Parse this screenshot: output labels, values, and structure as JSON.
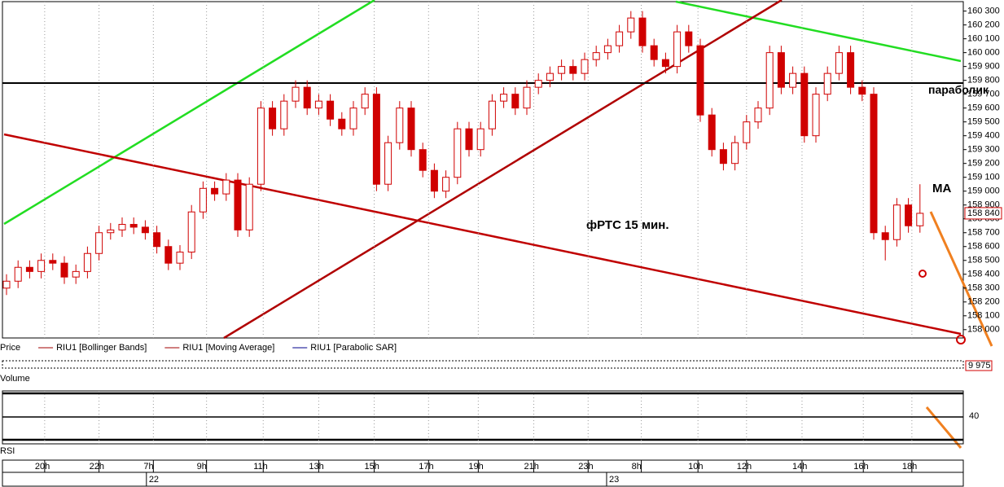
{
  "chart_data": {
    "type": "candlestick",
    "title": "фРТС   15 мин.",
    "annotation": "MA",
    "color": "#d00000",
    "open": [
      158300,
      158350,
      158450,
      158420,
      158500,
      158480,
      158380,
      158420,
      158550,
      158700,
      158720,
      158760,
      158740,
      158700,
      158600,
      158480,
      158560,
      158850,
      159020,
      158980,
      159080,
      158720,
      159050,
      159600,
      159450,
      159650,
      159750,
      159600,
      159650,
      159520,
      159450,
      159600,
      159700,
      159050,
      159350,
      159600,
      159300,
      159150,
      159000,
      159100,
      159450,
      159300,
      159450,
      159650,
      159700,
      159600,
      159750,
      159800,
      159850,
      159900,
      159850,
      159950,
      160000,
      160050,
      160150,
      160250,
      160050,
      159950,
      159900,
      160150,
      160050,
      159550,
      159300,
      159200,
      159350,
      159500,
      159600,
      160000,
      159750,
      159850,
      159400,
      159700,
      159850,
      160000,
      159750,
      159700,
      158700,
      158650,
      158900,
      158750
    ],
    "high": [
      158400,
      158500,
      158500,
      158550,
      158550,
      158530,
      158470,
      158600,
      158750,
      158770,
      158810,
      158810,
      158790,
      158750,
      158650,
      158610,
      158900,
      159070,
      159070,
      159130,
      159130,
      159100,
      159650,
      159650,
      159700,
      159800,
      159800,
      159700,
      159700,
      159570,
      159650,
      159750,
      159750,
      159400,
      159650,
      159650,
      159350,
      159200,
      159150,
      159500,
      159500,
      159500,
      159700,
      159750,
      159750,
      159800,
      159850,
      159900,
      159950,
      159950,
      160000,
      160050,
      160100,
      160200,
      160300,
      160300,
      160100,
      160000,
      160200,
      160200,
      160100,
      159600,
      159350,
      159400,
      159550,
      159650,
      160050,
      160050,
      159900,
      159900,
      159750,
      159900,
      160050,
      160050,
      159800,
      159750,
      158750,
      158950,
      158950,
      159050
    ],
    "low": [
      158250,
      158300,
      158370,
      158370,
      158430,
      158330,
      158330,
      158370,
      158500,
      158650,
      158670,
      158690,
      158650,
      158550,
      158430,
      158430,
      158510,
      158800,
      158930,
      158930,
      158670,
      158670,
      159000,
      159400,
      159400,
      159600,
      159550,
      159550,
      159470,
      159400,
      159400,
      159550,
      159000,
      159000,
      159300,
      159250,
      159100,
      158950,
      158950,
      159050,
      159250,
      159250,
      159400,
      159600,
      159550,
      159550,
      159700,
      159750,
      159800,
      159800,
      159800,
      159900,
      159950,
      160000,
      160100,
      160000,
      159900,
      159850,
      159850,
      160000,
      159500,
      159250,
      159150,
      159150,
      159300,
      159450,
      159550,
      159700,
      159700,
      159350,
      159350,
      159650,
      159800,
      159700,
      159650,
      158650,
      158500,
      158600,
      158700,
      158700
    ],
    "close": [
      158350,
      158450,
      158420,
      158500,
      158480,
      158380,
      158420,
      158550,
      158700,
      158720,
      158760,
      158740,
      158700,
      158600,
      158480,
      158560,
      158850,
      159020,
      158980,
      159080,
      158720,
      159050,
      159600,
      159450,
      159650,
      159750,
      159600,
      159650,
      159520,
      159450,
      159600,
      159700,
      159050,
      159350,
      159600,
      159300,
      159150,
      159000,
      159100,
      159450,
      159300,
      159450,
      159650,
      159700,
      159600,
      159750,
      159800,
      159850,
      159900,
      159850,
      159950,
      160000,
      160050,
      160150,
      160250,
      160050,
      159950,
      159900,
      160150,
      160050,
      159550,
      159300,
      159200,
      159350,
      159500,
      159600,
      160000,
      159750,
      159850,
      159400,
      159700,
      159850,
      160000,
      159750,
      159700,
      158700,
      158650,
      158900,
      158750,
      158840
    ],
    "last_label": "158 840",
    "ylim": [
      157940,
      160380
    ],
    "yticks": [
      {
        "value": 158000,
        "label": "158 000"
      },
      {
        "value": 158100,
        "label": "158 100"
      },
      {
        "value": 158200,
        "label": "158 200"
      },
      {
        "value": 158300,
        "label": "158 300"
      },
      {
        "value": 158400,
        "label": "158 400"
      },
      {
        "value": 158500,
        "label": "158 500"
      },
      {
        "value": 158600,
        "label": "158 600"
      },
      {
        "value": 158700,
        "label": "158 700"
      },
      {
        "value": 158800,
        "label": "158 800"
      },
      {
        "value": 158900,
        "label": "158 900"
      },
      {
        "value": 159000,
        "label": "159 000"
      },
      {
        "value": 159100,
        "label": "159 100"
      },
      {
        "value": 159200,
        "label": "159 200"
      },
      {
        "value": 159300,
        "label": "159 300"
      },
      {
        "value": 159400,
        "label": "159 400"
      },
      {
        "value": 159500,
        "label": "159 500"
      },
      {
        "value": 159600,
        "label": "159 600"
      },
      {
        "value": 159700,
        "label": "159 700"
      },
      {
        "value": 159800,
        "label": "159 800"
      },
      {
        "value": 159900,
        "label": "159 900"
      },
      {
        "value": 160000,
        "label": "160 000"
      },
      {
        "value": 160100,
        "label": "160 100"
      },
      {
        "value": 160200,
        "label": "160 200"
      },
      {
        "value": 160300,
        "label": "160 300"
      }
    ],
    "xticks": [
      {
        "value": 3.3,
        "label": "20h"
      },
      {
        "value": 8.0,
        "label": "22h"
      },
      {
        "value": 12.7,
        "label": "7h"
      },
      {
        "value": 17.3,
        "label": "9h"
      },
      {
        "value": 22.2,
        "label": "11h"
      },
      {
        "value": 27.0,
        "label": "13h"
      },
      {
        "value": 31.8,
        "label": "15h"
      },
      {
        "value": 36.5,
        "label": "17h"
      },
      {
        "value": 40.8,
        "label": "19h"
      },
      {
        "value": 45.6,
        "label": "21h"
      },
      {
        "value": 50.3,
        "label": "23h"
      },
      {
        "value": 54.9,
        "label": "8h"
      },
      {
        "value": 59.8,
        "label": "10h"
      },
      {
        "value": 64.0,
        "label": "12h"
      },
      {
        "value": 68.8,
        "label": "14h"
      },
      {
        "value": 74.1,
        "label": "16h"
      },
      {
        "value": 78.3,
        "label": "18h"
      }
    ],
    "dates": [
      {
        "value": 12.1,
        "label": "22"
      },
      {
        "value": 51.9,
        "label": "23"
      }
    ],
    "hline": {
      "value": 159780,
      "label": "параболик"
    },
    "grid": true,
    "legend": [
      {
        "name": "Price",
        "color": "#d00000"
      },
      {
        "name": "RIU1 [Bollinger Bands]",
        "color": "#a00000"
      },
      {
        "name": "RIU1 [Moving Average]",
        "color": "#a00000"
      },
      {
        "name": "RIU1 [Parabolic SAR]",
        "color": "#00008b"
      }
    ],
    "volume": {
      "title": "Volume",
      "last": {
        "value": 9975,
        "label": "9 975"
      }
    },
    "rsi": {
      "title": "RSI",
      "level": 40
    }
  }
}
